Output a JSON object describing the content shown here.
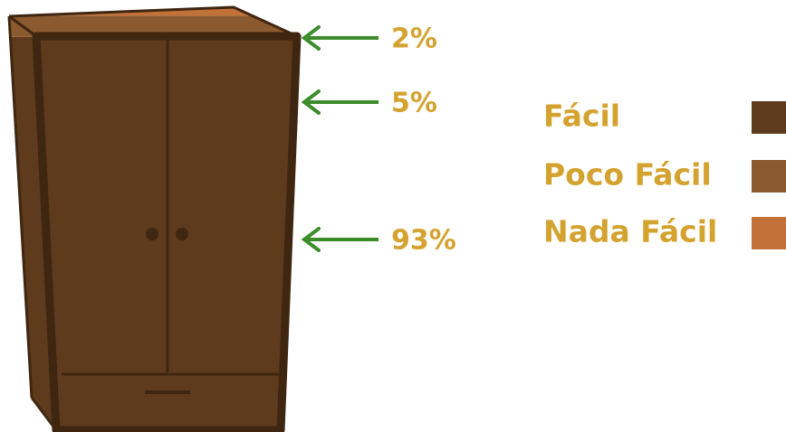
{
  "chart_data": {
    "type": "stacked-bar",
    "series": [
      {
        "name": "Fácil",
        "color": "#5e3b1d",
        "values": [
          93
        ],
        "value_labels": [
          "93%"
        ]
      },
      {
        "name": "Poco Fácil",
        "color": "#8b5a2e",
        "values": [
          5
        ],
        "value_labels": [
          "5%"
        ]
      },
      {
        "name": "Nada Fácil",
        "color": "#c27238",
        "values": [
          2
        ],
        "value_labels": [
          "2%"
        ]
      }
    ]
  }
}
